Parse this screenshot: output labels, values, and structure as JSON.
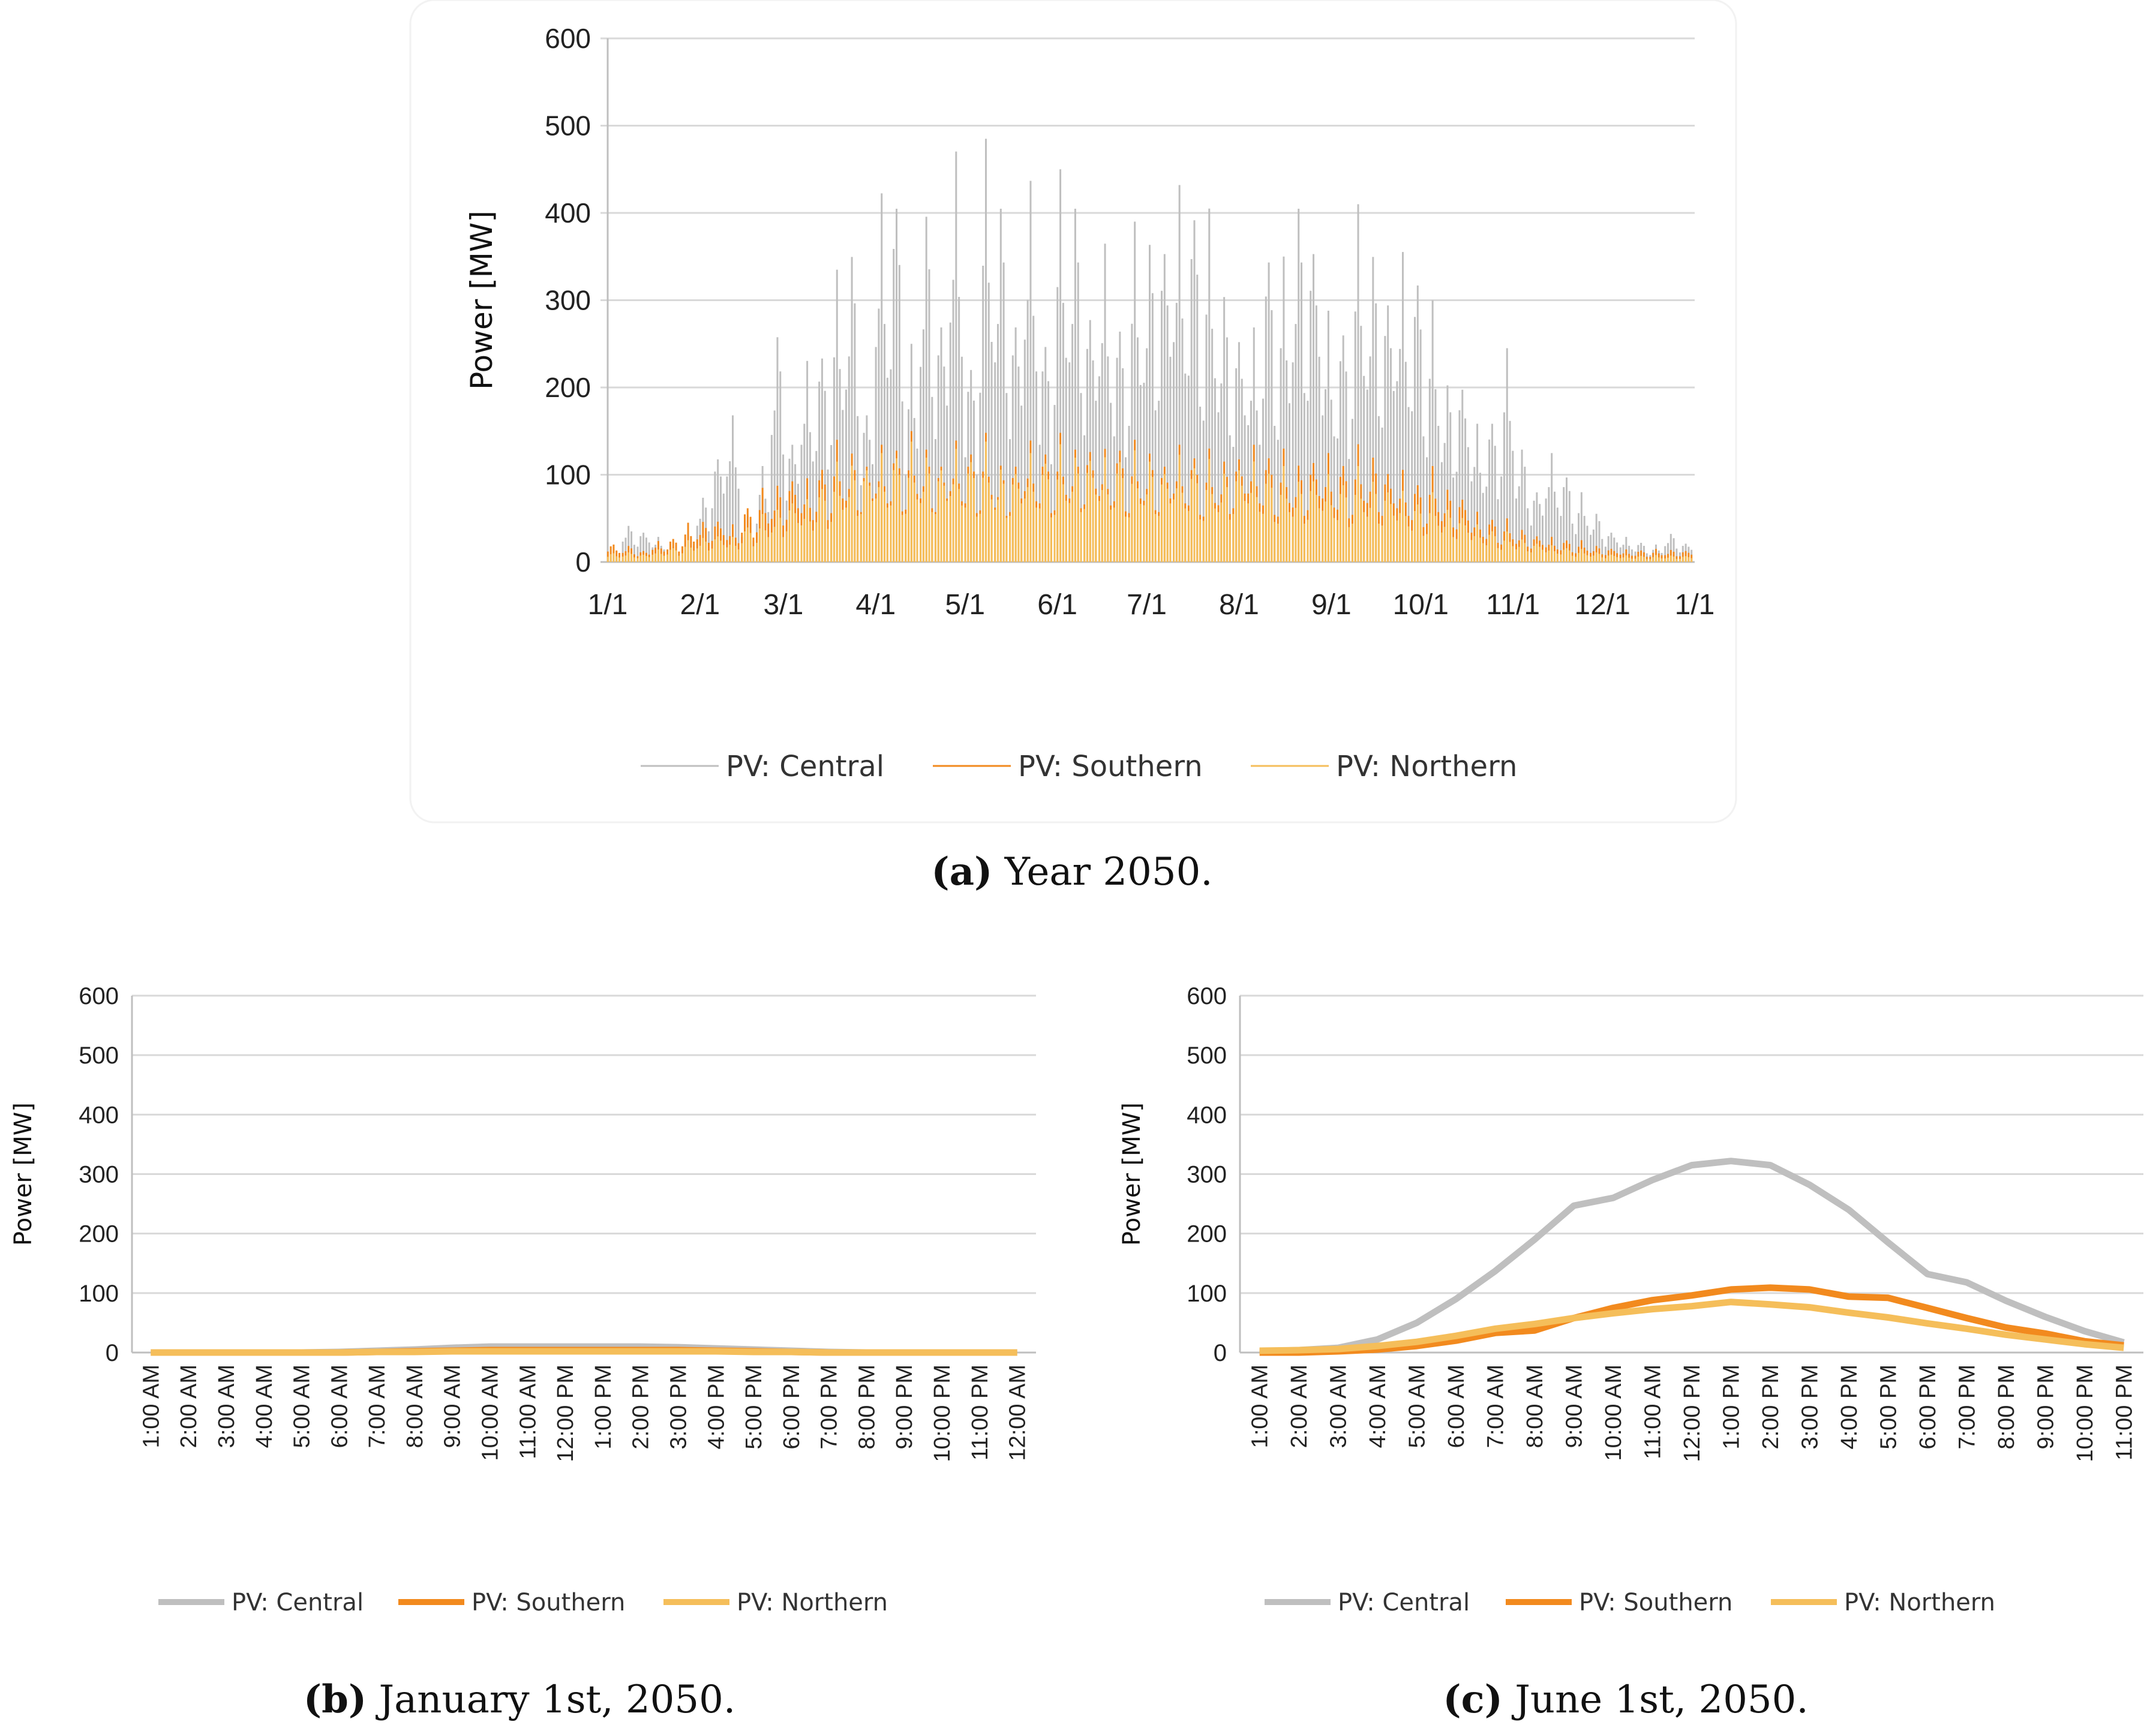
{
  "colors": {
    "central": "#BFBFBF",
    "southern": "#F28A1E",
    "northern": "#F5BE5A",
    "grid": "#D9D9D9"
  },
  "chart_data": [
    {
      "type": "bar",
      "id": "a",
      "caption_label": "(a)",
      "caption_text": " Year 2050.",
      "ylabel": "Power [MW]",
      "ylim": [
        0,
        600
      ],
      "yticks": [
        "0",
        "100",
        "200",
        "300",
        "400",
        "500",
        "600"
      ],
      "xtick_labels": [
        "1/1",
        "2/1",
        "3/1",
        "4/1",
        "5/1",
        "6/1",
        "7/1",
        "8/1",
        "9/1",
        "10/1",
        "11/1",
        "12/1",
        "1/1"
      ],
      "x_resolution": "approximate daily peaks sampled every 5 days",
      "grid": true,
      "legend": "bottom",
      "series": [
        {
          "name": "PV: Central",
          "values": [
            10,
            45,
            40,
            30,
            20,
            35,
            80,
            140,
            175,
            60,
            110,
            280,
            160,
            240,
            265,
            335,
            380,
            200,
            440,
            460,
            250,
            430,
            320,
            490,
            250,
            485,
            440,
            320,
            455,
            280,
            450,
            440,
            330,
            380,
            300,
            390,
            395,
            420,
            450,
            445,
            405,
            330,
            300,
            280,
            390,
            350,
            440,
            420,
            300,
            295,
            410,
            380,
            350,
            370,
            360,
            300,
            220,
            235,
            165,
            180,
            245,
            140,
            95,
            130,
            110,
            80,
            60,
            40,
            30,
            25,
            20,
            35,
            25
          ]
        },
        {
          "name": "PV: Southern",
          "values": [
            20,
            20,
            15,
            25,
            30,
            45,
            50,
            55,
            45,
            70,
            85,
            95,
            110,
            100,
            120,
            140,
            135,
            130,
            140,
            145,
            150,
            140,
            130,
            145,
            140,
            148,
            120,
            130,
            145,
            140,
            148,
            140,
            150,
            135,
            145,
            140,
            135,
            130,
            140,
            135,
            130,
            125,
            140,
            140,
            135,
            130,
            120,
            135,
            130,
            125,
            135,
            130,
            120,
            110,
            100,
            110,
            90,
            85,
            60,
            55,
            50,
            40,
            35,
            30,
            28,
            25,
            20,
            18,
            15,
            15,
            15,
            15,
            15
          ]
        },
        {
          "name": "PV: Northern",
          "values": [
            10,
            12,
            10,
            15,
            18,
            25,
            30,
            35,
            30,
            45,
            55,
            65,
            80,
            75,
            95,
            115,
            120,
            125,
            130,
            135,
            138,
            130,
            125,
            135,
            130,
            138,
            115,
            120,
            130,
            128,
            135,
            130,
            138,
            125,
            130,
            128,
            125,
            120,
            128,
            122,
            118,
            110,
            125,
            120,
            115,
            110,
            100,
            110,
            105,
            100,
            110,
            100,
            95,
            85,
            75,
            80,
            65,
            60,
            45,
            40,
            35,
            28,
            25,
            20,
            18,
            15,
            12,
            10,
            8,
            8,
            8,
            8,
            8
          ]
        }
      ]
    },
    {
      "type": "line",
      "id": "b",
      "caption_label": "(b)",
      "caption_text": " January 1st, 2050.",
      "ylabel": "Power [MW]",
      "ylim": [
        0,
        600
      ],
      "yticks": [
        "0",
        "100",
        "200",
        "300",
        "400",
        "500",
        "600"
      ],
      "categories": [
        "1:00 AM",
        "2:00 AM",
        "3:00 AM",
        "4:00 AM",
        "5:00 AM",
        "6:00 AM",
        "7:00 AM",
        "8:00 AM",
        "9:00 AM",
        "10:00 AM",
        "11:00 AM",
        "12:00 PM",
        "1:00 PM",
        "2:00 PM",
        "3:00 PM",
        "4:00 PM",
        "5:00 PM",
        "6:00 PM",
        "7:00 PM",
        "8:00 PM",
        "9:00 PM",
        "10:00 PM",
        "11:00 PM",
        "12:00 AM"
      ],
      "grid": true,
      "legend": "bottom",
      "series": [
        {
          "name": "PV: Central",
          "values": [
            0,
            0,
            0,
            0,
            0,
            1,
            3,
            5,
            8,
            10,
            10,
            10,
            10,
            10,
            9,
            7,
            5,
            3,
            1,
            0,
            0,
            0,
            0,
            0
          ]
        },
        {
          "name": "PV: Southern",
          "values": [
            0,
            0,
            0,
            0,
            0,
            0,
            1,
            2,
            3,
            4,
            4,
            4,
            4,
            4,
            4,
            3,
            2,
            1,
            0,
            0,
            0,
            0,
            0,
            0
          ]
        },
        {
          "name": "PV: Northern",
          "values": [
            0,
            0,
            0,
            0,
            0,
            0,
            1,
            1,
            2,
            2,
            2,
            2,
            2,
            2,
            2,
            2,
            1,
            1,
            0,
            0,
            0,
            0,
            0,
            0
          ]
        }
      ]
    },
    {
      "type": "line",
      "id": "c",
      "caption_label": "(c)",
      "caption_text": " June 1st, 2050.",
      "ylabel": "Power [MW]",
      "ylim": [
        0,
        600
      ],
      "yticks": [
        "0",
        "100",
        "200",
        "300",
        "400",
        "500",
        "600"
      ],
      "categories": [
        "1:00 AM",
        "2:00 AM",
        "3:00 AM",
        "4:00 AM",
        "5:00 AM",
        "6:00 AM",
        "7:00 AM",
        "8:00 AM",
        "9:00 AM",
        "10:00 AM",
        "11:00 AM",
        "12:00 PM",
        "1:00 PM",
        "2:00 PM",
        "3:00 PM",
        "4:00 PM",
        "5:00 PM",
        "6:00 PM",
        "7:00 PM",
        "8:00 PM",
        "9:00 PM",
        "10:00 PM",
        "11:00 PM"
      ],
      "grid": true,
      "legend": "bottom",
      "series": [
        {
          "name": "PV: Central",
          "values": [
            2,
            4,
            8,
            22,
            50,
            90,
            137,
            190,
            247,
            260,
            290,
            315,
            322,
            315,
            282,
            240,
            185,
            132,
            118,
            87,
            60,
            36,
            17
          ]
        },
        {
          "name": "PV: Southern",
          "values": [
            0,
            0,
            2,
            5,
            11,
            20,
            33,
            37,
            58,
            75,
            88,
            96,
            106,
            109,
            106,
            94,
            92,
            75,
            58,
            42,
            32,
            19,
            12
          ]
        },
        {
          "name": "PV: Northern",
          "values": [
            3,
            4,
            6,
            11,
            18,
            28,
            40,
            48,
            58,
            66,
            73,
            78,
            85,
            81,
            76,
            67,
            59,
            49,
            40,
            30,
            22,
            14,
            8
          ]
        }
      ]
    }
  ]
}
